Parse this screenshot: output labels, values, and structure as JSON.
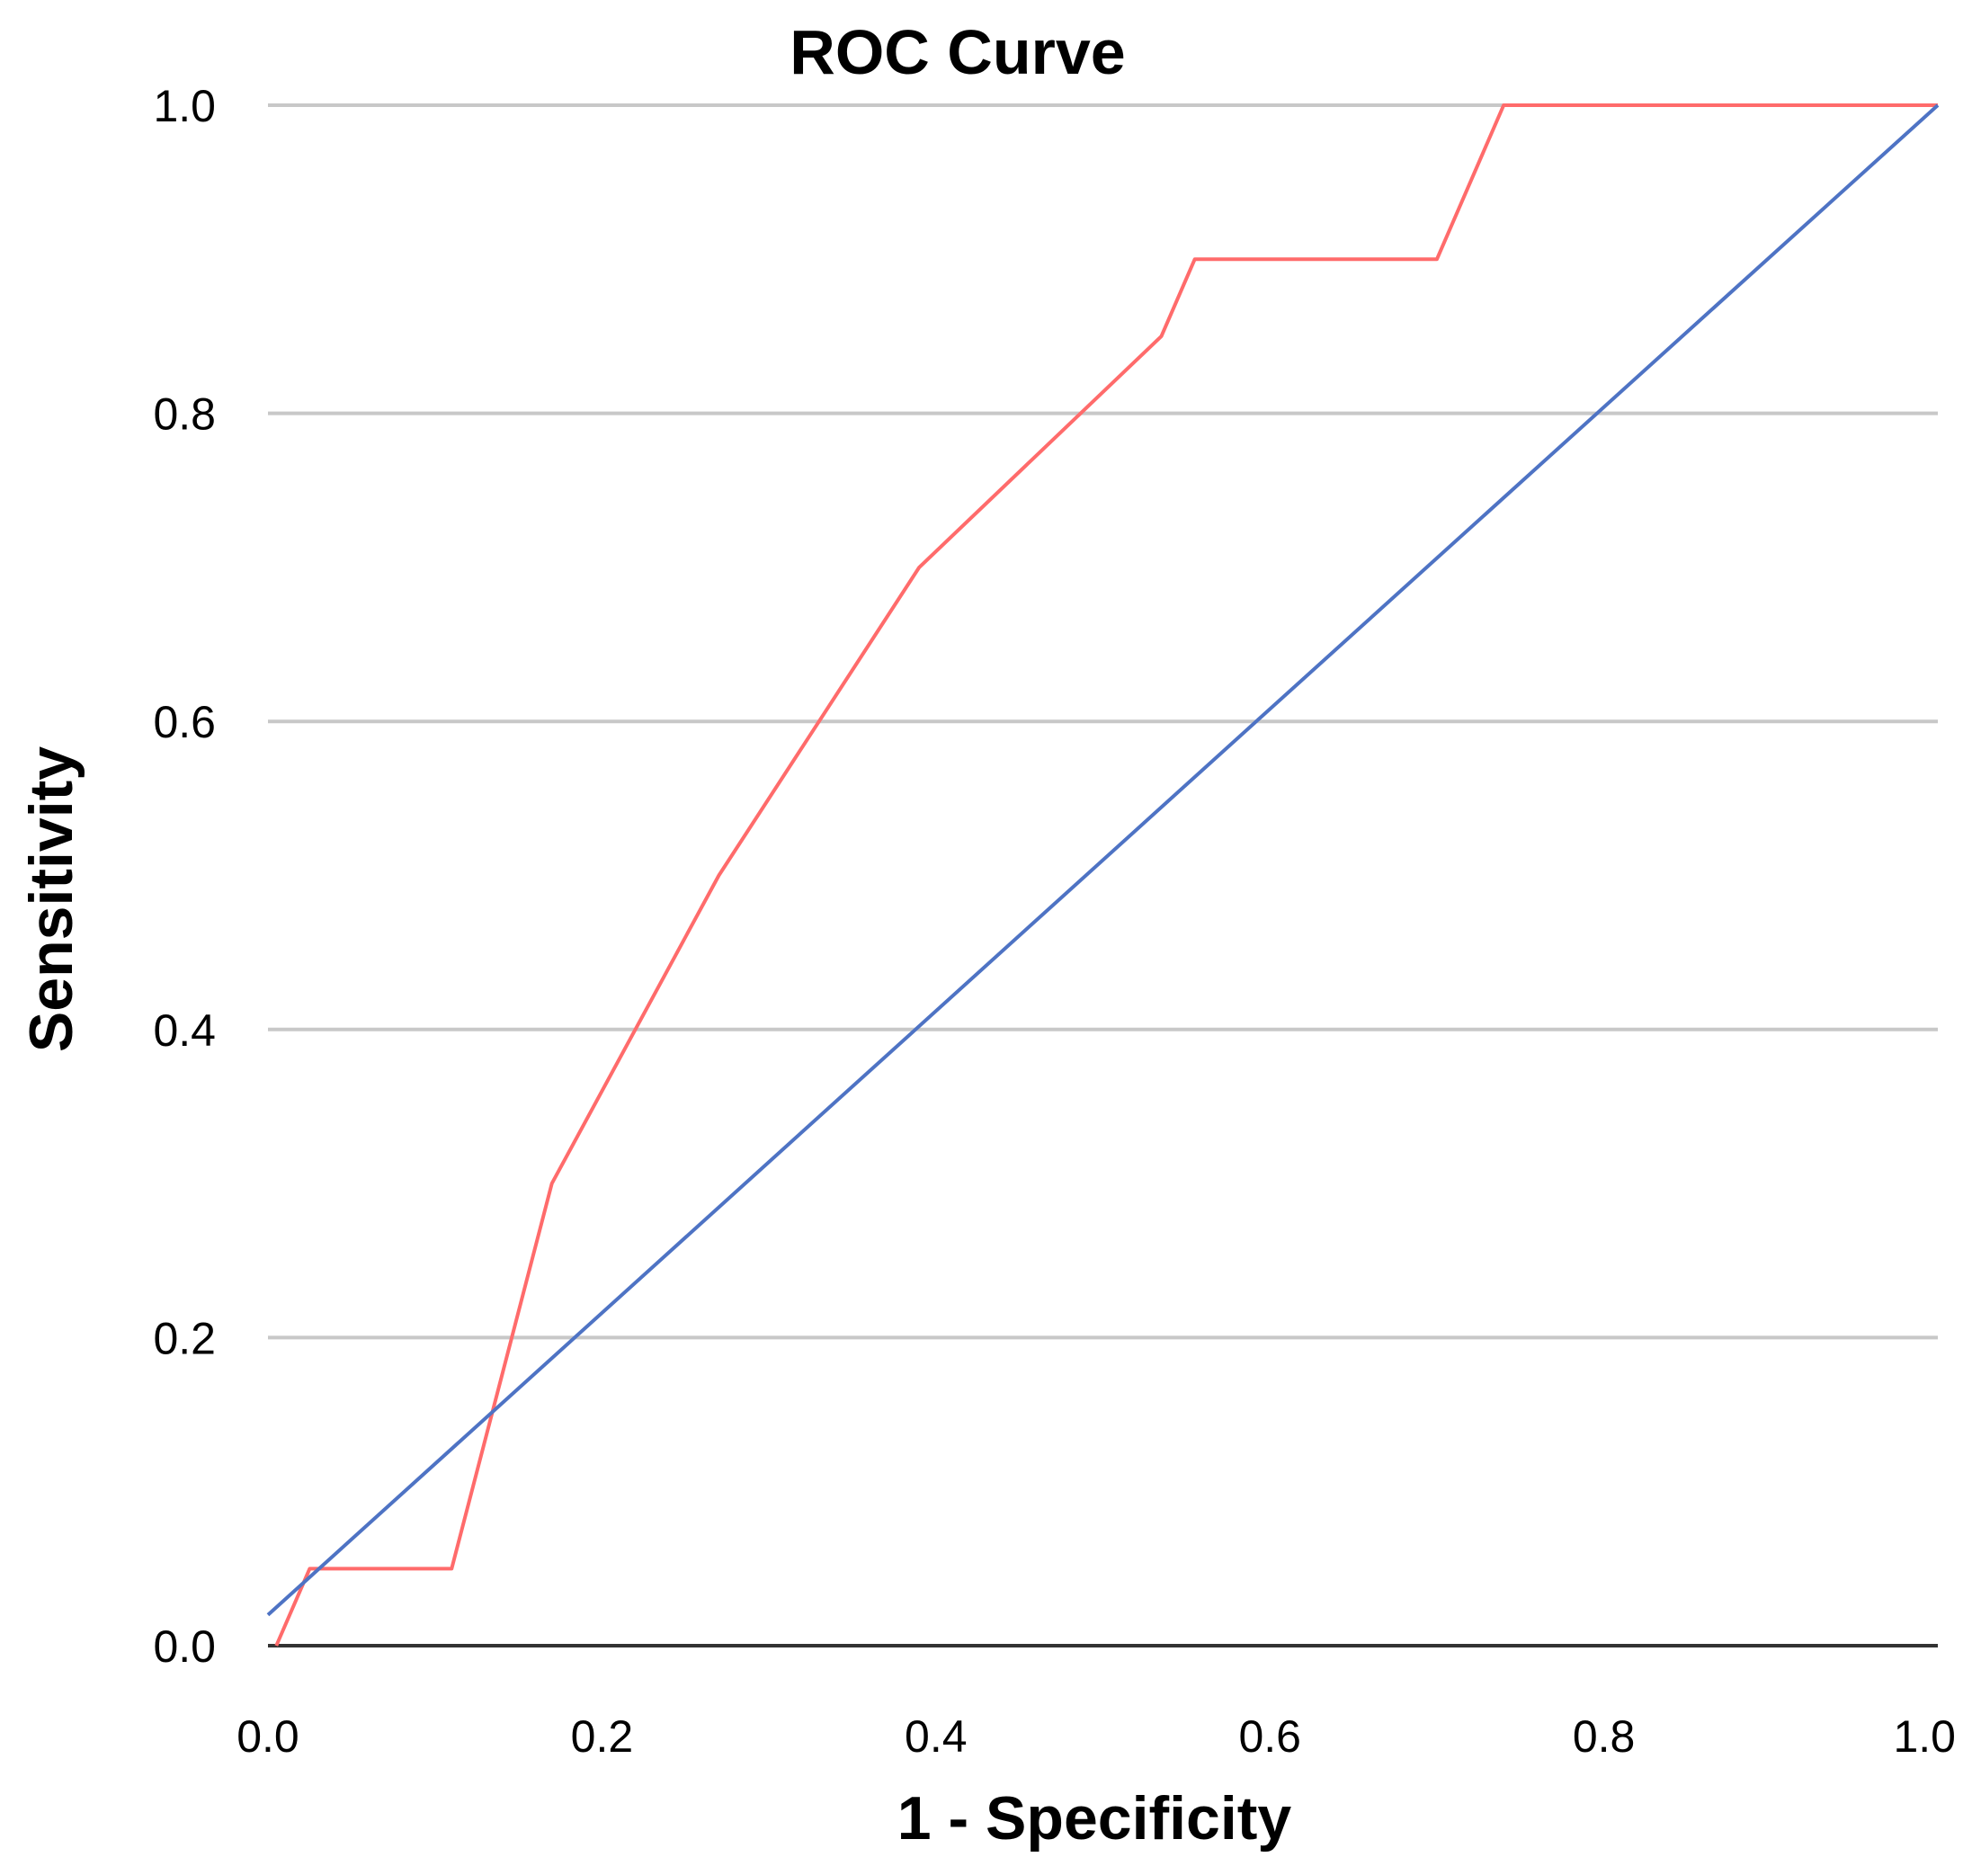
{
  "chart_data": {
    "type": "line",
    "title": "ROC Curve",
    "xlabel": "1 - Specificity",
    "ylabel": "Sensitivity",
    "xlim": [
      0,
      1
    ],
    "ylim": [
      0,
      1
    ],
    "x_ticks": [
      "0.0",
      "0.2",
      "0.4",
      "0.6",
      "0.8",
      "1.0"
    ],
    "y_ticks": [
      "0.0",
      "0.2",
      "0.4",
      "0.6",
      "0.8",
      "1.0"
    ],
    "grid": "horizontal",
    "legend": "none",
    "series": [
      {
        "color": "#ff6b6b",
        "points": [
          [
            0.005,
            0.0
          ],
          [
            0.025,
            0.05
          ],
          [
            0.11,
            0.05
          ],
          [
            0.17,
            0.3
          ],
          [
            0.27,
            0.5
          ],
          [
            0.39,
            0.7
          ],
          [
            0.535,
            0.85
          ],
          [
            0.555,
            0.9
          ],
          [
            0.7,
            0.9
          ],
          [
            0.74,
            1.0
          ],
          [
            1.0,
            1.0
          ]
        ]
      },
      {
        "color": "#4e73c4",
        "points": [
          [
            0.0,
            0.02
          ],
          [
            1.0,
            1.0
          ]
        ]
      }
    ]
  }
}
